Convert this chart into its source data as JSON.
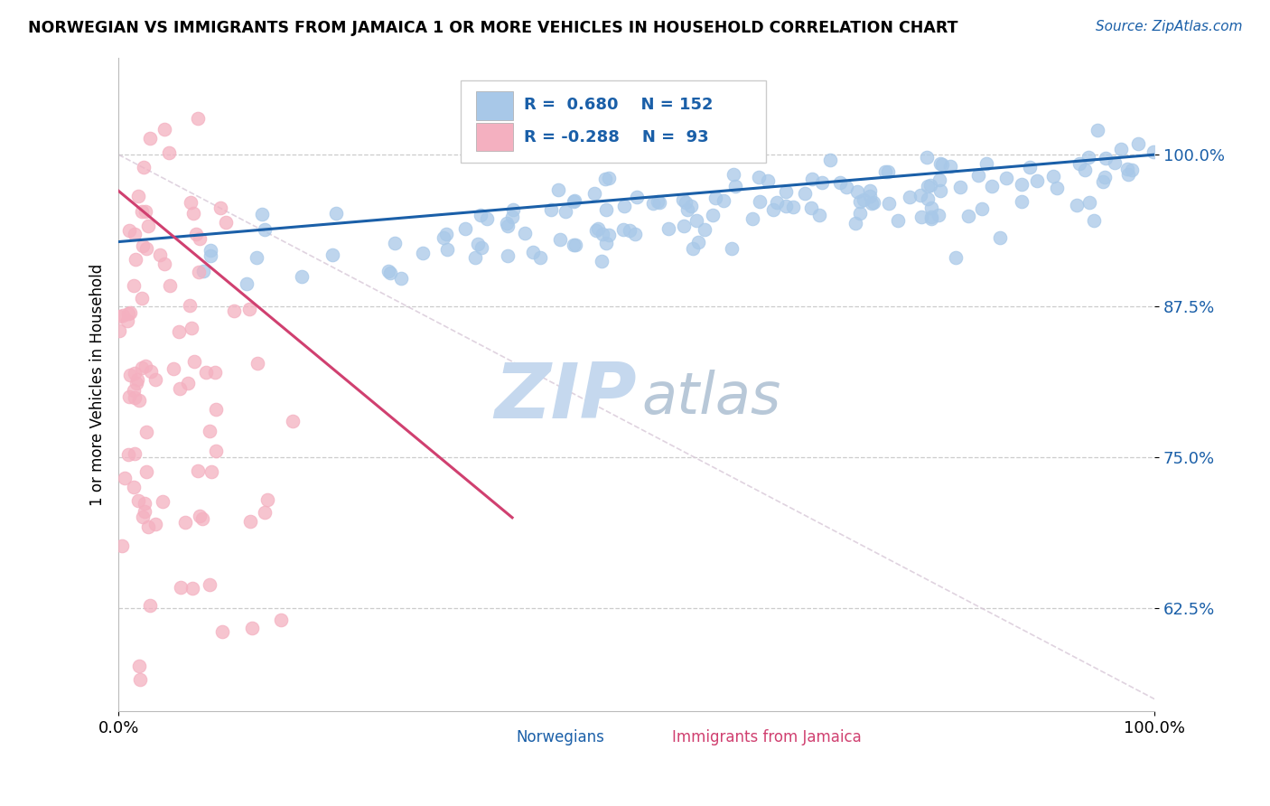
{
  "title": "NORWEGIAN VS IMMIGRANTS FROM JAMAICA 1 OR MORE VEHICLES IN HOUSEHOLD CORRELATION CHART",
  "source": "Source: ZipAtlas.com",
  "ylabel": "1 or more Vehicles in Household",
  "ytick_labels": [
    "62.5%",
    "75.0%",
    "87.5%",
    "100.0%"
  ],
  "ytick_values": [
    0.625,
    0.75,
    0.875,
    1.0
  ],
  "blue_R": 0.68,
  "blue_N": 152,
  "pink_R": -0.288,
  "pink_N": 93,
  "blue_color": "#a8c8e8",
  "pink_color": "#f4b0c0",
  "blue_line_color": "#1a5fa8",
  "pink_line_color": "#d04070",
  "legend_blue_label": "Norwegians",
  "legend_pink_label": "Immigrants from Jamaica",
  "background_color": "#ffffff",
  "watermark_zip": "ZIP",
  "watermark_atlas": "atlas",
  "watermark_color_zip": "#c5d8ee",
  "watermark_color_atlas": "#b8c8d8"
}
